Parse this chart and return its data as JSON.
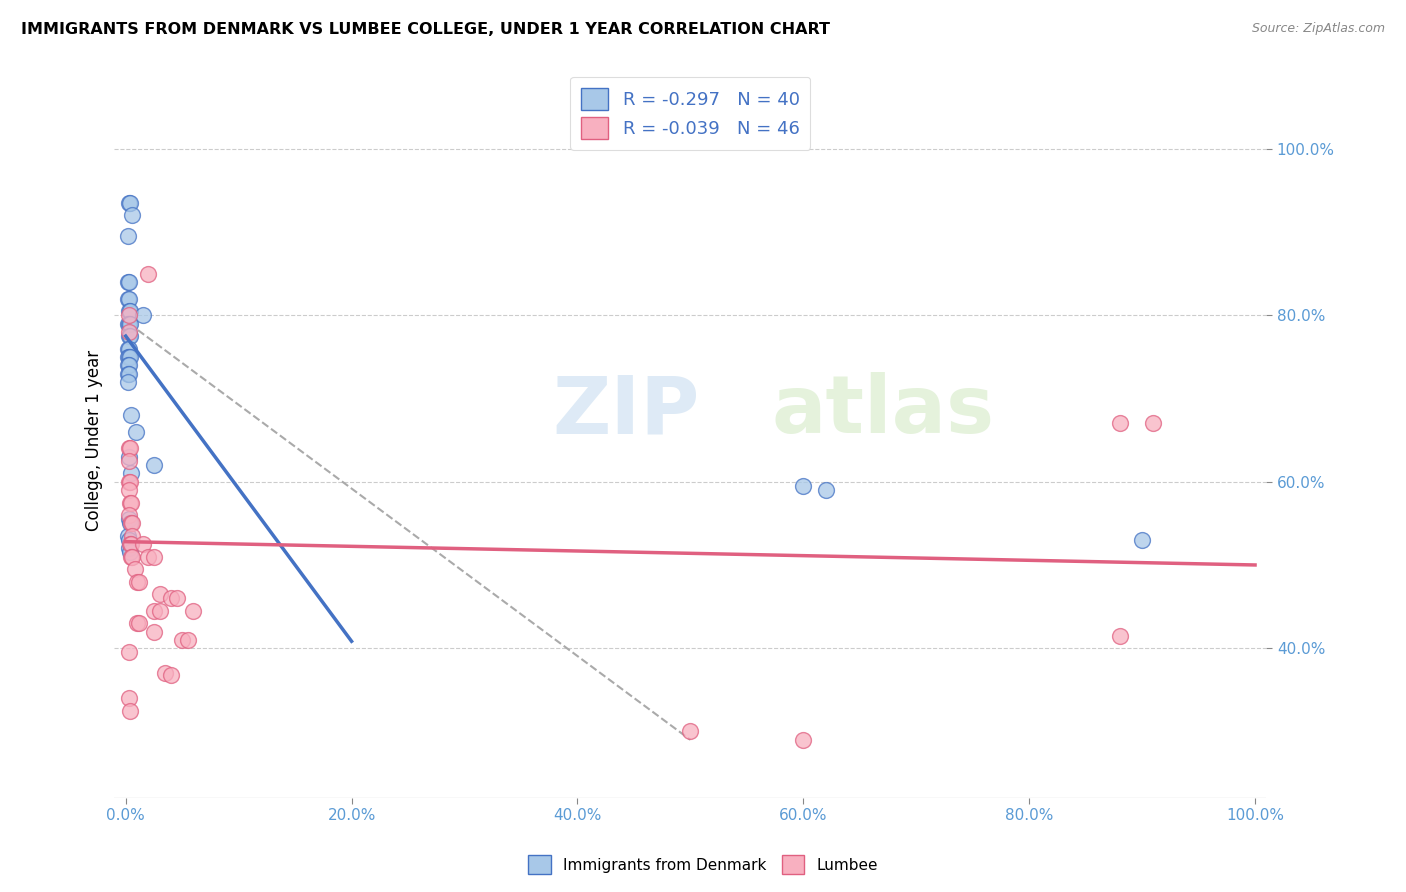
{
  "title": "IMMIGRANTS FROM DENMARK VS LUMBEE COLLEGE, UNDER 1 YEAR CORRELATION CHART",
  "source": "Source: ZipAtlas.com",
  "ylabel": "College, Under 1 year",
  "legend_label1": "Immigrants from Denmark",
  "legend_label2": "Lumbee",
  "r1": -0.297,
  "n1": 40,
  "r2": -0.039,
  "n2": 46,
  "color_blue": "#a8c8e8",
  "color_pink": "#f8b0c0",
  "line_blue": "#4472c4",
  "line_pink": "#e06080",
  "blue_points": [
    [
      0.003,
      0.935
    ],
    [
      0.004,
      0.935
    ],
    [
      0.006,
      0.92
    ],
    [
      0.002,
      0.895
    ],
    [
      0.002,
      0.84
    ],
    [
      0.003,
      0.84
    ],
    [
      0.002,
      0.82
    ],
    [
      0.003,
      0.82
    ],
    [
      0.003,
      0.805
    ],
    [
      0.004,
      0.805
    ],
    [
      0.002,
      0.79
    ],
    [
      0.003,
      0.79
    ],
    [
      0.004,
      0.79
    ],
    [
      0.003,
      0.775
    ],
    [
      0.004,
      0.775
    ],
    [
      0.002,
      0.76
    ],
    [
      0.003,
      0.76
    ],
    [
      0.002,
      0.75
    ],
    [
      0.003,
      0.75
    ],
    [
      0.004,
      0.75
    ],
    [
      0.002,
      0.74
    ],
    [
      0.003,
      0.74
    ],
    [
      0.002,
      0.73
    ],
    [
      0.003,
      0.73
    ],
    [
      0.002,
      0.72
    ],
    [
      0.015,
      0.8
    ],
    [
      0.005,
      0.68
    ],
    [
      0.009,
      0.66
    ],
    [
      0.003,
      0.63
    ],
    [
      0.005,
      0.61
    ],
    [
      0.025,
      0.62
    ],
    [
      0.003,
      0.555
    ],
    [
      0.004,
      0.55
    ],
    [
      0.6,
      0.595
    ],
    [
      0.62,
      0.59
    ],
    [
      0.002,
      0.535
    ],
    [
      0.003,
      0.53
    ],
    [
      0.9,
      0.53
    ],
    [
      0.003,
      0.52
    ],
    [
      0.004,
      0.515
    ]
  ],
  "pink_points": [
    [
      0.003,
      0.8
    ],
    [
      0.003,
      0.78
    ],
    [
      0.02,
      0.85
    ],
    [
      0.003,
      0.64
    ],
    [
      0.004,
      0.64
    ],
    [
      0.003,
      0.625
    ],
    [
      0.003,
      0.6
    ],
    [
      0.004,
      0.6
    ],
    [
      0.003,
      0.59
    ],
    [
      0.004,
      0.575
    ],
    [
      0.005,
      0.575
    ],
    [
      0.003,
      0.56
    ],
    [
      0.005,
      0.55
    ],
    [
      0.006,
      0.55
    ],
    [
      0.006,
      0.535
    ],
    [
      0.004,
      0.525
    ],
    [
      0.005,
      0.525
    ],
    [
      0.005,
      0.51
    ],
    [
      0.006,
      0.51
    ],
    [
      0.015,
      0.525
    ],
    [
      0.02,
      0.51
    ],
    [
      0.025,
      0.51
    ],
    [
      0.008,
      0.495
    ],
    [
      0.01,
      0.48
    ],
    [
      0.012,
      0.48
    ],
    [
      0.03,
      0.465
    ],
    [
      0.04,
      0.46
    ],
    [
      0.045,
      0.46
    ],
    [
      0.025,
      0.445
    ],
    [
      0.03,
      0.445
    ],
    [
      0.06,
      0.445
    ],
    [
      0.01,
      0.43
    ],
    [
      0.012,
      0.43
    ],
    [
      0.025,
      0.42
    ],
    [
      0.05,
      0.41
    ],
    [
      0.055,
      0.41
    ],
    [
      0.003,
      0.395
    ],
    [
      0.035,
      0.37
    ],
    [
      0.04,
      0.368
    ],
    [
      0.003,
      0.34
    ],
    [
      0.004,
      0.325
    ],
    [
      0.5,
      0.3
    ],
    [
      0.6,
      0.29
    ],
    [
      0.88,
      0.67
    ],
    [
      0.91,
      0.67
    ],
    [
      0.88,
      0.415
    ]
  ],
  "blue_line_x": [
    0.0,
    0.12
  ],
  "blue_line_y": [
    0.775,
    0.555
  ],
  "pink_line_x": [
    0.0,
    1.0
  ],
  "pink_line_y": [
    0.528,
    0.5
  ],
  "dash_line_x": [
    0.003,
    0.5
  ],
  "dash_line_y": [
    0.79,
    0.29
  ],
  "xlim": [
    -0.01,
    1.01
  ],
  "ylim": [
    0.22,
    1.08
  ],
  "xticks": [
    0.0,
    0.2,
    0.4,
    0.6,
    0.8,
    1.0
  ],
  "yticks_right": [
    0.4,
    0.6,
    0.8,
    1.0
  ]
}
